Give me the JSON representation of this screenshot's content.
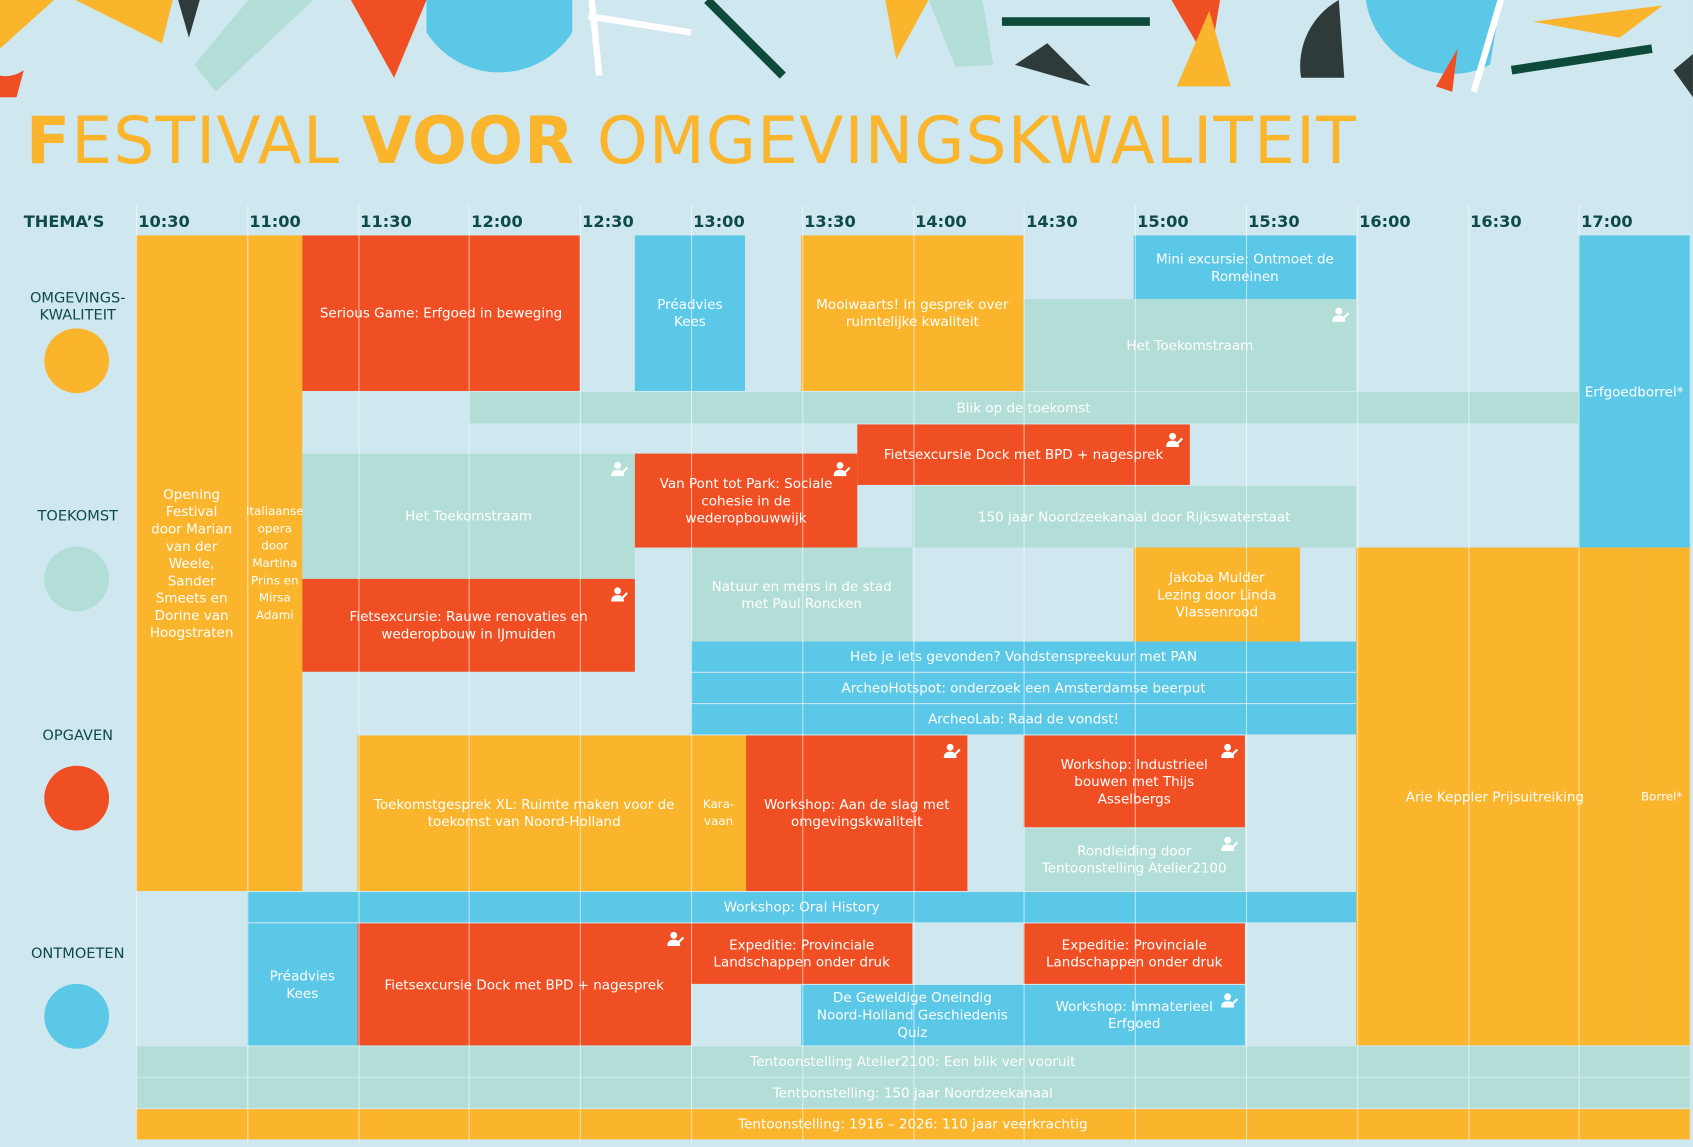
{
  "title_parts": [
    {
      "text": "F",
      "bold": true
    },
    {
      "text": "ESTIVAL ",
      "bold": false
    },
    {
      "text": "VOOR",
      "bold": true
    },
    {
      "text": " OMGEVINGSKWALITEIT",
      "bold": false
    }
  ],
  "themes_header": "THEMA’S",
  "themes": [
    {
      "label": "OMGEVINGS-\nKWALITEIT",
      "color": "#fbb52d"
    },
    {
      "label": "TOEKOMST",
      "color": "#b2ded7"
    },
    {
      "label": "OPGAVEN",
      "color": "#f04e23"
    },
    {
      "label": "ONTMOETEN",
      "color": "#5bc8e8"
    }
  ],
  "times": [
    "10:30",
    "11:00",
    "11:30",
    "12:00",
    "12:30",
    "13:00",
    "13:30",
    "14:00",
    "14:30",
    "15:00",
    "15:30",
    "16:00",
    "16:30",
    "17:00"
  ],
  "events": [
    {
      "label": "Opening Festival door Marian van der Weele, Sander Smeets en Dorine van Hoogstraten",
      "color": "#fbb52d",
      "icon": false
    },
    {
      "label": "Italiaanse opera door Martina Prins en Mirsa Adami",
      "color": "#fbb52d",
      "icon": false
    },
    {
      "label": "Serious Game: Erfgoed in beweging",
      "color": "#f04e23",
      "icon": false
    },
    {
      "label": "Préadvies Kees",
      "color": "#5bc8e8",
      "icon": false
    },
    {
      "label": "Mooiwaarts! In gesprek over ruimtelijke kwaliteit",
      "color": "#fbb52d",
      "icon": false
    },
    {
      "label": "Mini excursie: Ontmoet de Romeinen",
      "color": "#5bc8e8",
      "icon": false
    },
    {
      "label": "Het Toekomstraam",
      "color": "#b2ded7",
      "icon": true
    },
    {
      "label": "Erfgoedborrel*",
      "color": "#5bc8e8",
      "icon": false
    },
    {
      "label": "Blik op de toekomst",
      "color": "#b2ded7",
      "icon": false
    },
    {
      "label": "Fietsexcursie Dock met BPD + nagesprek",
      "color": "#f04e23",
      "icon": true
    },
    {
      "label": "Het Toekomstraam",
      "color": "#b2ded7",
      "icon": true
    },
    {
      "label": "Van Pont tot Park: Sociale cohesie in de wederopbouwwijk",
      "color": "#f04e23",
      "icon": true
    },
    {
      "label": "150 jaar Noordzeekanaal door Rijkswaterstaat",
      "color": "#b2ded7",
      "icon": false
    },
    {
      "label": "Fietsexcursie: Rauwe renovaties en wederopbouw in IJmuiden",
      "color": "#f04e23",
      "icon": true
    },
    {
      "label": "Natuur en mens in de stad met Paul Roncken",
      "color": "#b2ded7",
      "icon": false
    },
    {
      "label": "Jakoba Mulder Lezing door Linda Vlassenrood",
      "color": "#fbb52d",
      "icon": false
    },
    {
      "label": "Arie Keppler Prijsuitreiking",
      "color": "#fbb52d",
      "icon": false
    },
    {
      "label": "Borrel*",
      "color": "#fbb52d",
      "icon": false
    },
    {
      "label": "Heb je iets gevonden? Vondstenspreekuur met PAN",
      "color": "#5bc8e8",
      "icon": false
    },
    {
      "label": "ArcheoHotspot: onderzoek een Amsterdamse beerput",
      "color": "#5bc8e8",
      "icon": false
    },
    {
      "label": "ArcheoLab: Raad de vondst!",
      "color": "#5bc8e8",
      "icon": false
    },
    {
      "label": "Toekomstgesprek XL: Ruimte maken voor de toekomst van Noord-Holland",
      "color": "#fbb52d",
      "icon": false
    },
    {
      "label": "Kara-\nvaan",
      "color": "#fbb52d",
      "icon": false
    },
    {
      "label": "Workshop: Aan de slag met omgevingskwaliteit",
      "color": "#f04e23",
      "icon": true
    },
    {
      "label": "Workshop: Industrieel bouwen met Thijs Asselbergs",
      "color": "#f04e23",
      "icon": true
    },
    {
      "label": "Rondleiding door Tentoonstelling Atelier2100",
      "color": "#b2ded7",
      "icon": true
    },
    {
      "label": "Workshop: Oral History",
      "color": "#5bc8e8",
      "icon": false
    },
    {
      "label": "Préadvies Kees",
      "color": "#5bc8e8",
      "icon": false
    },
    {
      "label": "Fietsexcursie Dock met BPD + nagesprek",
      "color": "#f04e23",
      "icon": true
    },
    {
      "label": "Expeditie: Provinciale Landschappen onder druk",
      "color": "#f04e23",
      "icon": false
    },
    {
      "label": "Expeditie: Provinciale Landschappen onder druk",
      "color": "#f04e23",
      "icon": false
    },
    {
      "label": "De Geweldige Oneindig Noord-Holland Geschiedenis Quiz",
      "color": "#5bc8e8",
      "icon": false
    },
    {
      "label": "Workshop: Immaterieel Erfgoed",
      "color": "#5bc8e8",
      "icon": true
    },
    {
      "label": "Tentoonstelling Atelier2100: Een blik ver vooruit",
      "color": "#b2ded7",
      "icon": false
    },
    {
      "label": "Tentoonstelling: 150 jaar Noordzeekanaal",
      "color": "#b2ded7",
      "icon": false
    },
    {
      "label": "Tentoonstelling: 1916 – 2026: 110 jaar veerkrachtig",
      "color": "#fbb52d",
      "icon": false
    }
  ]
}
